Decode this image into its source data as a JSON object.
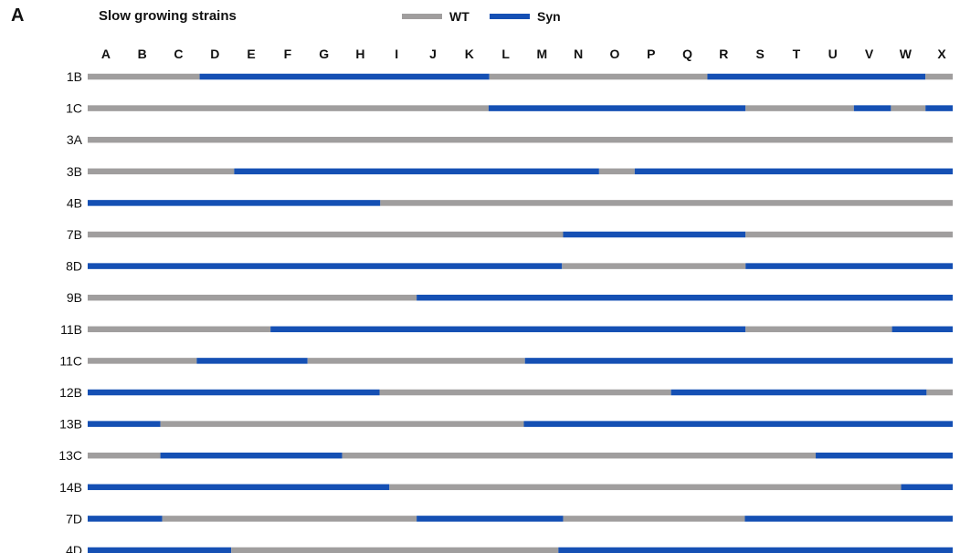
{
  "panel_letter": "A",
  "chart_data": {
    "type": "segmented-bar",
    "title": "Slow growing strains",
    "legend": [
      {
        "name": "WT",
        "color": "#a09e9e"
      },
      {
        "name": "Syn",
        "color": "#1550b4"
      }
    ],
    "columns": [
      "A",
      "B",
      "C",
      "D",
      "E",
      "F",
      "G",
      "H",
      "I",
      "J",
      "K",
      "L",
      "M",
      "N",
      "O",
      "P",
      "Q",
      "R",
      "S",
      "T",
      "U",
      "V",
      "W",
      "X"
    ],
    "x_range": [
      0,
      24
    ],
    "rows": [
      {
        "label": "1B",
        "segments": [
          [
            "WT",
            0,
            3.08
          ],
          [
            "Syn",
            3.08,
            11.05
          ],
          [
            "WT",
            11.05,
            17.05
          ],
          [
            "Syn",
            17.05,
            23.05
          ],
          [
            "WT",
            23.05,
            23.8
          ]
        ]
      },
      {
        "label": "1C",
        "segments": [
          [
            "WT",
            0,
            11.03
          ],
          [
            "Syn",
            11.03,
            18.1
          ],
          [
            "WT",
            18.1,
            21.08
          ],
          [
            "Syn",
            21.08,
            22.1
          ],
          [
            "WT",
            22.1,
            23.05
          ],
          [
            "Syn",
            23.05,
            23.8
          ]
        ]
      },
      {
        "label": "3A",
        "segments": [
          [
            "WT",
            0,
            23.8
          ]
        ]
      },
      {
        "label": "3B",
        "segments": [
          [
            "WT",
            0,
            4.03
          ],
          [
            "Syn",
            4.03,
            14.07
          ],
          [
            "WT",
            14.07,
            15.05
          ],
          [
            "Syn",
            15.05,
            23.8
          ]
        ]
      },
      {
        "label": "4B",
        "segments": [
          [
            "Syn",
            0,
            8.05
          ],
          [
            "WT",
            8.05,
            23.8
          ]
        ]
      },
      {
        "label": "7B",
        "segments": [
          [
            "WT",
            0,
            13.08
          ],
          [
            "Syn",
            13.08,
            18.1
          ],
          [
            "WT",
            18.1,
            23.8
          ]
        ]
      },
      {
        "label": "8D",
        "segments": [
          [
            "Syn",
            0,
            13.05
          ],
          [
            "WT",
            13.05,
            18.1
          ],
          [
            "Syn",
            18.1,
            23.8
          ]
        ]
      },
      {
        "label": "9B",
        "segments": [
          [
            "WT",
            0,
            9.05
          ],
          [
            "Syn",
            9.05,
            23.8
          ]
        ]
      },
      {
        "label": "11B",
        "segments": [
          [
            "WT",
            0,
            5.03
          ],
          [
            "Syn",
            5.03,
            18.1
          ],
          [
            "WT",
            18.1,
            22.13
          ],
          [
            "Syn",
            22.13,
            23.8
          ]
        ]
      },
      {
        "label": "11C",
        "segments": [
          [
            "WT",
            0,
            3.0
          ],
          [
            "Syn",
            3.0,
            6.05
          ],
          [
            "WT",
            6.05,
            12.03
          ],
          [
            "Syn",
            12.03,
            23.8
          ]
        ]
      },
      {
        "label": "12B",
        "segments": [
          [
            "Syn",
            0,
            8.03
          ],
          [
            "WT",
            8.03,
            16.05
          ],
          [
            "Syn",
            16.05,
            23.08
          ],
          [
            "WT",
            23.08,
            23.8
          ]
        ]
      },
      {
        "label": "13B",
        "segments": [
          [
            "Syn",
            0,
            2.0
          ],
          [
            "WT",
            2.0,
            12.0
          ],
          [
            "Syn",
            12.0,
            23.8
          ]
        ]
      },
      {
        "label": "13C",
        "segments": [
          [
            "WT",
            0,
            2.0
          ],
          [
            "Syn",
            2.0,
            7.0
          ],
          [
            "WT",
            7.0,
            20.03
          ],
          [
            "Syn",
            20.03,
            23.8
          ]
        ]
      },
      {
        "label": "14B",
        "segments": [
          [
            "Syn",
            0,
            8.3
          ],
          [
            "WT",
            8.3,
            22.38
          ],
          [
            "Syn",
            22.38,
            23.8
          ]
        ]
      },
      {
        "label": "7D",
        "segments": [
          [
            "Syn",
            0,
            2.05
          ],
          [
            "WT",
            2.05,
            9.05
          ],
          [
            "Syn",
            9.05,
            13.08
          ],
          [
            "WT",
            13.08,
            18.08
          ],
          [
            "Syn",
            18.08,
            23.8
          ]
        ]
      },
      {
        "label": "4D",
        "segments": [
          [
            "Syn",
            0,
            3.95
          ],
          [
            "WT",
            3.95,
            12.95
          ],
          [
            "Syn",
            12.95,
            23.8
          ]
        ]
      }
    ]
  }
}
